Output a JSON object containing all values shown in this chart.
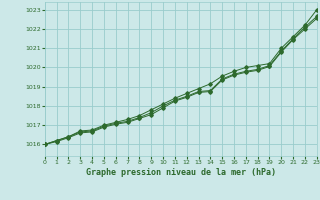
{
  "title": "Graphe pression niveau de la mer (hPa)",
  "bg_color": "#cce8e8",
  "grid_color": "#99cccc",
  "line_color": "#2d6a2d",
  "marker_color": "#2d6a2d",
  "x_values": [
    0,
    1,
    2,
    3,
    4,
    5,
    6,
    7,
    8,
    9,
    10,
    11,
    12,
    13,
    14,
    15,
    16,
    17,
    18,
    19,
    20,
    21,
    22,
    23
  ],
  "series1": [
    1016.0,
    1016.15,
    1016.35,
    1016.6,
    1016.65,
    1016.9,
    1017.05,
    1017.15,
    1017.35,
    1017.55,
    1017.9,
    1018.25,
    1018.45,
    1018.7,
    1018.75,
    1019.35,
    1019.6,
    1019.75,
    1019.85,
    1020.05,
    1020.8,
    1021.45,
    1022.0,
    1022.55
  ],
  "series2": [
    1016.0,
    1016.2,
    1016.4,
    1016.65,
    1016.7,
    1016.95,
    1017.1,
    1017.2,
    1017.4,
    1017.65,
    1018.0,
    1018.3,
    1018.5,
    1018.75,
    1018.8,
    1019.4,
    1019.65,
    1019.8,
    1019.9,
    1020.1,
    1020.85,
    1021.5,
    1022.1,
    1022.65
  ],
  "series3": [
    1016.0,
    1016.2,
    1016.4,
    1016.7,
    1016.75,
    1017.0,
    1017.15,
    1017.3,
    1017.5,
    1017.8,
    1018.1,
    1018.4,
    1018.65,
    1018.9,
    1019.15,
    1019.55,
    1019.8,
    1020.0,
    1020.1,
    1020.2,
    1021.0,
    1021.6,
    1022.2,
    1023.0
  ],
  "ylim_min": 1015.4,
  "ylim_max": 1023.4,
  "yticks": [
    1016,
    1017,
    1018,
    1019,
    1020,
    1021,
    1022,
    1023
  ],
  "xlim_min": 0,
  "xlim_max": 23
}
